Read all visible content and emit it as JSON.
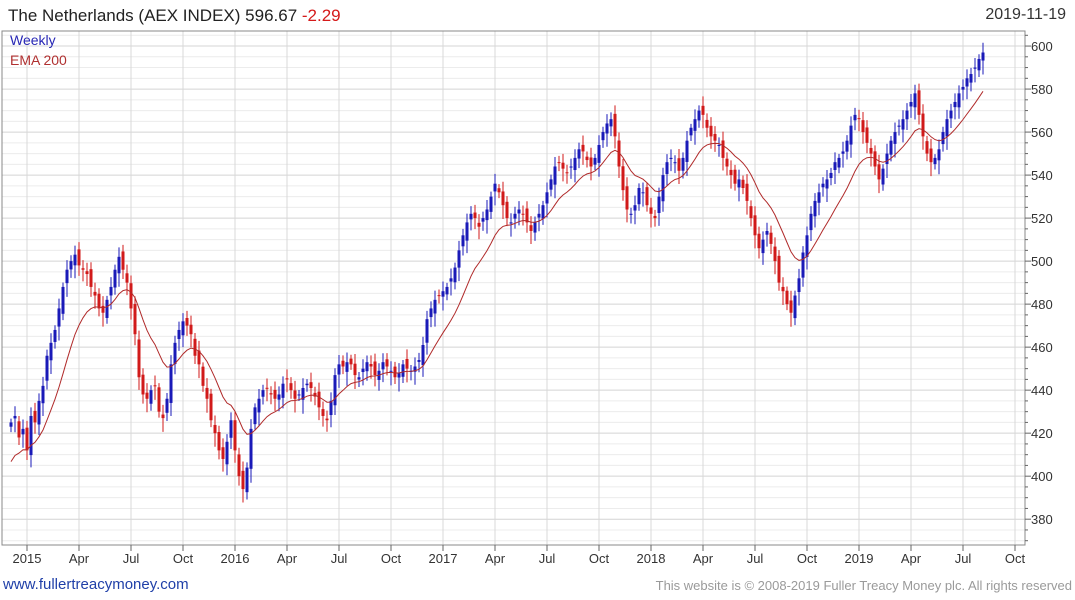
{
  "header": {
    "index_name": "The Netherlands (AEX INDEX)",
    "last_value": "596.67",
    "change": "-2.29",
    "date": "2019-11-19"
  },
  "footer": {
    "site": "www.fullertreacymoney.com",
    "copyright": "This website is © 2008-2019 Fuller Treacy Money plc. All rights reserved"
  },
  "chart_data": {
    "type": "candlestick",
    "title": "The Netherlands (AEX INDEX) 596.67 -2.29",
    "period": "Weekly",
    "indicator": "EMA 200",
    "legend": [
      "Weekly",
      "EMA 200"
    ],
    "legend_position": "top-left",
    "y_axis_position": "right",
    "ylim": [
      368,
      607
    ],
    "y_ticks": [
      380,
      400,
      420,
      440,
      460,
      480,
      500,
      520,
      540,
      560,
      580,
      600
    ],
    "x_ticks": [
      {
        "label": "2015",
        "week": 4
      },
      {
        "label": "Apr",
        "week": 17
      },
      {
        "label": "Jul",
        "week": 30
      },
      {
        "label": "Oct",
        "week": 43
      },
      {
        "label": "2016",
        "week": 56
      },
      {
        "label": "Apr",
        "week": 69
      },
      {
        "label": "Jul",
        "week": 82
      },
      {
        "label": "Oct",
        "week": 95
      },
      {
        "label": "2017",
        "week": 108
      },
      {
        "label": "Apr",
        "week": 121
      },
      {
        "label": "Jul",
        "week": 134
      },
      {
        "label": "Oct",
        "week": 147
      },
      {
        "label": "2018",
        "week": 160
      },
      {
        "label": "Apr",
        "week": 173
      },
      {
        "label": "Jul",
        "week": 186
      },
      {
        "label": "Oct",
        "week": 199
      },
      {
        "label": "2019",
        "week": 212
      },
      {
        "label": "Apr",
        "week": 225
      },
      {
        "label": "Jul",
        "week": 238
      },
      {
        "label": "Oct",
        "week": 251
      }
    ],
    "grid": true,
    "close": [
      425,
      428,
      418,
      422,
      412,
      428,
      425,
      435,
      442,
      456,
      462,
      468,
      478,
      488,
      496,
      500,
      503,
      498,
      496,
      494,
      488,
      484,
      478,
      476,
      482,
      488,
      496,
      502,
      496,
      490,
      478,
      466,
      446,
      438,
      436,
      440,
      442,
      430,
      427,
      436,
      452,
      462,
      468,
      472,
      470,
      466,
      456,
      452,
      442,
      436,
      426,
      420,
      412,
      408,
      416,
      426,
      412,
      400,
      394,
      404,
      422,
      432,
      436,
      440,
      441,
      438,
      436,
      438,
      443,
      445,
      440,
      436,
      438,
      441,
      443,
      441,
      437,
      432,
      428,
      426,
      435,
      447,
      452,
      451,
      453,
      452,
      447,
      446,
      450,
      453,
      451,
      447,
      449,
      453,
      451,
      449,
      446,
      448,
      452,
      450,
      449,
      451,
      454,
      461,
      473,
      478,
      482,
      484,
      486,
      488,
      492,
      497,
      505,
      512,
      518,
      522,
      520,
      516,
      520,
      524,
      530,
      536,
      532,
      526,
      520,
      518,
      522,
      524,
      522,
      518,
      514,
      518,
      522,
      526,
      532,
      538,
      544,
      546,
      543,
      541,
      544,
      548,
      552,
      551,
      547,
      544,
      548,
      554,
      560,
      564,
      566,
      558,
      544,
      533,
      524,
      522,
      526,
      534,
      532,
      526,
      522,
      520,
      530,
      540,
      546,
      548,
      546,
      542,
      548,
      556,
      562,
      566,
      570,
      568,
      562,
      558,
      556,
      554,
      548,
      544,
      540,
      536,
      538,
      534,
      528,
      520,
      512,
      506,
      510,
      514,
      508,
      500,
      490,
      486,
      480,
      476,
      484,
      492,
      504,
      512,
      522,
      528,
      532,
      536,
      538,
      541,
      546,
      548,
      551,
      556,
      563,
      568,
      566,
      560,
      555,
      550,
      544,
      538,
      543,
      550,
      556,
      560,
      563,
      566,
      570,
      574,
      578,
      568,
      558,
      550,
      546,
      548,
      552,
      560,
      566,
      570,
      574,
      578,
      581,
      585,
      587,
      590,
      594,
      597
    ]
  }
}
